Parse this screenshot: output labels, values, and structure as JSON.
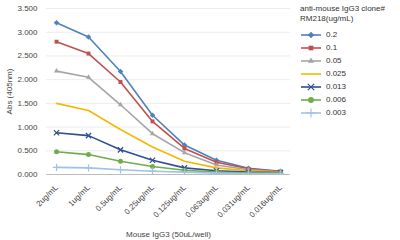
{
  "chart_data": {
    "type": "line",
    "x_label": "Mouse IgG3 (50uL/well)",
    "y_label": "Abs (405nm)",
    "legend_title": "anti-mouse IgG3 clone# RM218(ug/mL)",
    "legend": "right",
    "grid": true,
    "categories": [
      "2ug/mL",
      "1ug/mL",
      "0.5ug/mL",
      "0.25ug/mL",
      "0.125ug/mL",
      "0.063ug/mL",
      "0.031ug/mL",
      "0.016ug/mL"
    ],
    "ylim": [
      0,
      3.5
    ],
    "yticks": [
      {
        "value": 0,
        "label": "0.000"
      },
      {
        "value": 0.5,
        "label": "0.500"
      },
      {
        "value": 1,
        "label": "1.000"
      },
      {
        "value": 1.5,
        "label": "1.500"
      },
      {
        "value": 2,
        "label": "2.000"
      },
      {
        "value": 2.5,
        "label": "2.500"
      },
      {
        "value": 3,
        "label": "3.000"
      },
      {
        "value": 3.5,
        "label": "3.500"
      }
    ],
    "series": [
      {
        "name": "0.2",
        "color": "#4f81bd",
        "marker": "diamond",
        "values": [
          3.2,
          2.9,
          2.17,
          1.25,
          0.62,
          0.3,
          0.13,
          0.07
        ]
      },
      {
        "name": "0.1",
        "color": "#c0504d",
        "marker": "square",
        "values": [
          2.8,
          2.55,
          1.95,
          1.12,
          0.55,
          0.26,
          0.12,
          0.06
        ]
      },
      {
        "name": "0.05",
        "color": "#a5a5a5",
        "marker": "triangle",
        "values": [
          2.18,
          2.05,
          1.47,
          0.86,
          0.46,
          0.2,
          0.1,
          0.05
        ]
      },
      {
        "name": "0.025",
        "color": "#f5b800",
        "marker": "none",
        "values": [
          1.5,
          1.35,
          0.95,
          0.58,
          0.28,
          0.14,
          0.08,
          0.05
        ]
      },
      {
        "name": "0.013",
        "color": "#2f4f8f",
        "marker": "x",
        "values": [
          0.88,
          0.82,
          0.52,
          0.3,
          0.14,
          0.08,
          0.05,
          0.04
        ]
      },
      {
        "name": "0.006",
        "color": "#70ad47",
        "marker": "circle",
        "values": [
          0.48,
          0.42,
          0.28,
          0.17,
          0.09,
          0.05,
          0.03,
          0.03
        ]
      },
      {
        "name": "0.003",
        "color": "#9dc3e6",
        "marker": "plus",
        "values": [
          0.15,
          0.14,
          0.1,
          0.07,
          0.05,
          0.03,
          0.02,
          0.02
        ]
      }
    ]
  }
}
